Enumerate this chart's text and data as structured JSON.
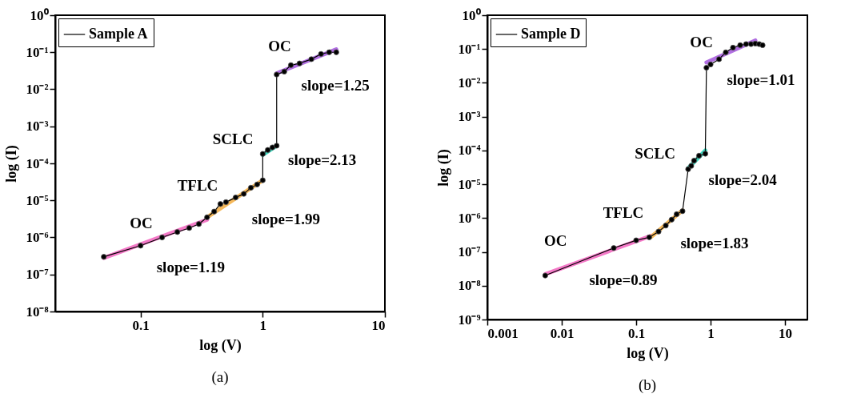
{
  "chart_data": [
    {
      "type": "line",
      "title": "(a)",
      "xlabel": "log (V)",
      "ylabel": "log (I)",
      "log": "xy",
      "legend": "top left",
      "xlim": [
        0.02,
        10
      ],
      "xticks": [
        0.1,
        1,
        10
      ],
      "ylim": [
        1e-08,
        1
      ],
      "yticks": [
        {
          "value": 1e-08,
          "label": "10⁻⁸"
        },
        {
          "value": 1e-07,
          "label": "10⁻⁷"
        },
        {
          "value": 1e-06,
          "label": "10⁻⁶"
        },
        {
          "value": 1e-05,
          "label": "10⁻⁵"
        },
        {
          "value": 0.0001,
          "label": "10⁻⁴"
        },
        {
          "value": 0.001,
          "label": "10⁻³"
        },
        {
          "value": 0.01,
          "label": "10⁻²"
        },
        {
          "value": 0.1,
          "label": "10⁻¹"
        },
        {
          "value": 1,
          "label": "10⁰"
        }
      ],
      "series": [
        {
          "name": "Sample A",
          "color": "#000000",
          "marker": "circle",
          "x": [
            0.05,
            0.1,
            0.15,
            0.2,
            0.25,
            0.3,
            0.35,
            0.4,
            0.45,
            0.5,
            0.6,
            0.7,
            0.8,
            0.9,
            1.0,
            1.0,
            1.1,
            1.2,
            1.3,
            1.3,
            1.5,
            1.7,
            2,
            2.5,
            3,
            3.5,
            4
          ],
          "values": [
            3e-07,
            6e-07,
            1e-06,
            1.4e-06,
            1.8e-06,
            2.3e-06,
            3.5e-06,
            5e-06,
            8e-06,
            9e-06,
            1.2e-05,
            1.5e-05,
            2.2e-05,
            2.7e-05,
            3.5e-05,
            0.00018,
            0.00023,
            0.00027,
            0.0003,
            0.025,
            0.03,
            0.045,
            0.05,
            0.065,
            0.09,
            0.1,
            0.1
          ]
        },
        {
          "type": "line",
          "color": "#f47ac8",
          "x": [
            0.05,
            0.35
          ],
          "values": [
            2.8e-07,
            3e-06
          ]
        },
        {
          "type": "line",
          "color": "#f5b85a",
          "x": [
            0.35,
            1.0
          ],
          "values": [
            3.5e-06,
            3.5e-05
          ]
        },
        {
          "type": "line",
          "color": "#3ad9c0",
          "x": [
            1.0,
            1.3
          ],
          "values": [
            0.00017,
            0.0003
          ]
        },
        {
          "type": "line",
          "color": "#b06ee0",
          "x": [
            1.3,
            4
          ],
          "values": [
            0.027,
            0.12
          ]
        }
      ],
      "annotations": [
        "OC",
        "slope=1.19",
        "TFLC",
        "slope=1.99",
        "SCLC",
        "slope=2.13",
        "OC",
        "slope=1.25"
      ]
    },
    {
      "type": "line",
      "title": "(b)",
      "xlabel": "log (V)",
      "ylabel": "log (I)",
      "log": "xy",
      "legend": "top left",
      "xlim": [
        0.001,
        20
      ],
      "xticks": [
        0.001,
        0.01,
        0.1,
        1,
        10
      ],
      "ylim": [
        1e-09,
        1
      ],
      "yticks": [
        {
          "value": 1e-09,
          "label": "10⁻⁹"
        },
        {
          "value": 1e-08,
          "label": "10⁻⁸"
        },
        {
          "value": 1e-07,
          "label": "10⁻⁷"
        },
        {
          "value": 1e-06,
          "label": "10⁻⁶"
        },
        {
          "value": 1e-05,
          "label": "10⁻⁵"
        },
        {
          "value": 0.0001,
          "label": "10⁻⁴"
        },
        {
          "value": 0.001,
          "label": "10⁻³"
        },
        {
          "value": 0.01,
          "label": "10⁻²"
        },
        {
          "value": 0.1,
          "label": "10⁻¹"
        },
        {
          "value": 1,
          "label": "10⁰"
        }
      ],
      "series": [
        {
          "name": "Sample D",
          "color": "#000000",
          "marker": "circle",
          "x": [
            0.006,
            0.05,
            0.1,
            0.15,
            0.2,
            0.25,
            0.3,
            0.35,
            0.42,
            0.5,
            0.55,
            0.6,
            0.7,
            0.85,
            0.88,
            1.0,
            1.3,
            1.6,
            2,
            2.5,
            3,
            3.5,
            4,
            4.5,
            5
          ],
          "values": [
            2e-08,
            1.3e-07,
            2.2e-07,
            2.7e-07,
            4e-07,
            6e-07,
            9e-07,
            1.3e-06,
            1.6e-06,
            2.8e-05,
            3.5e-05,
            5e-05,
            7e-05,
            8e-05,
            0.028,
            0.035,
            0.05,
            0.08,
            0.11,
            0.13,
            0.14,
            0.14,
            0.145,
            0.14,
            0.13
          ]
        },
        {
          "type": "line",
          "color": "#f47ac8",
          "x": [
            0.006,
            0.16
          ],
          "values": [
            2.2e-08,
            3e-07
          ]
        },
        {
          "type": "line",
          "color": "#f5b85a",
          "x": [
            0.16,
            0.42
          ],
          "values": [
            2.8e-07,
            1.7e-06
          ]
        },
        {
          "type": "line",
          "color": "#3ad9c0",
          "x": [
            0.5,
            0.85
          ],
          "values": [
            3e-05,
            0.0001
          ]
        },
        {
          "type": "line",
          "color": "#b06ee0",
          "x": [
            0.88,
            4
          ],
          "values": [
            0.04,
            0.18
          ]
        }
      ],
      "annotations": [
        "OC",
        "slope=0.89",
        "TFLC",
        "slope=1.83",
        "SCLC",
        "slope=2.04",
        "OC",
        "slope=1.01"
      ]
    }
  ]
}
